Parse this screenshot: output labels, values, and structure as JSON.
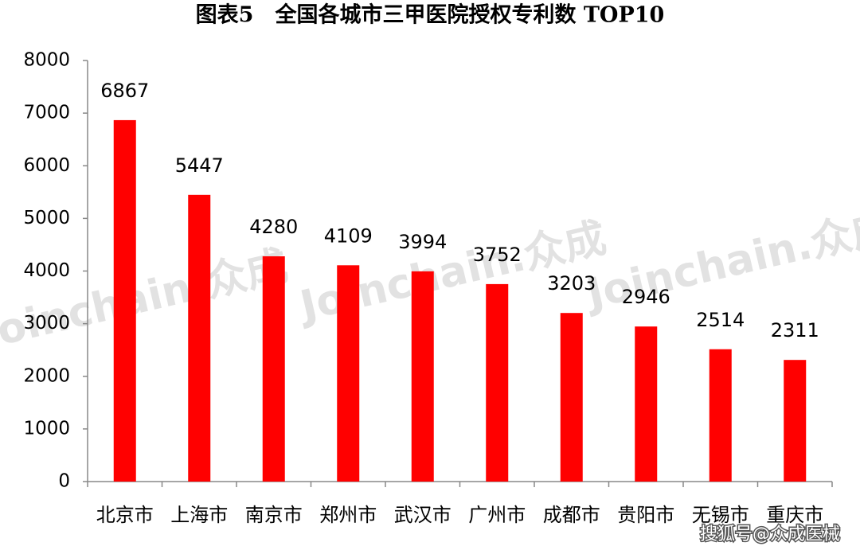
{
  "chart_data": {
    "type": "bar",
    "title": "图表5　全国各城市三甲医院授权专利数 TOP10",
    "categories": [
      "北京市",
      "上海市",
      "南京市",
      "郑州市",
      "武汉市",
      "广州市",
      "成都市",
      "贵阳市",
      "无锡市",
      "重庆市"
    ],
    "values": [
      6867,
      5447,
      4280,
      4109,
      3994,
      3752,
      3203,
      2946,
      2514,
      2311
    ],
    "color": "#ff0000",
    "ylim": [
      0,
      8000
    ],
    "yticks": [
      0,
      1000,
      2000,
      3000,
      4000,
      5000,
      6000,
      7000,
      8000
    ],
    "grid": false,
    "watermark": "Joinchain.众成",
    "source": "搜狐号@众成医械"
  }
}
